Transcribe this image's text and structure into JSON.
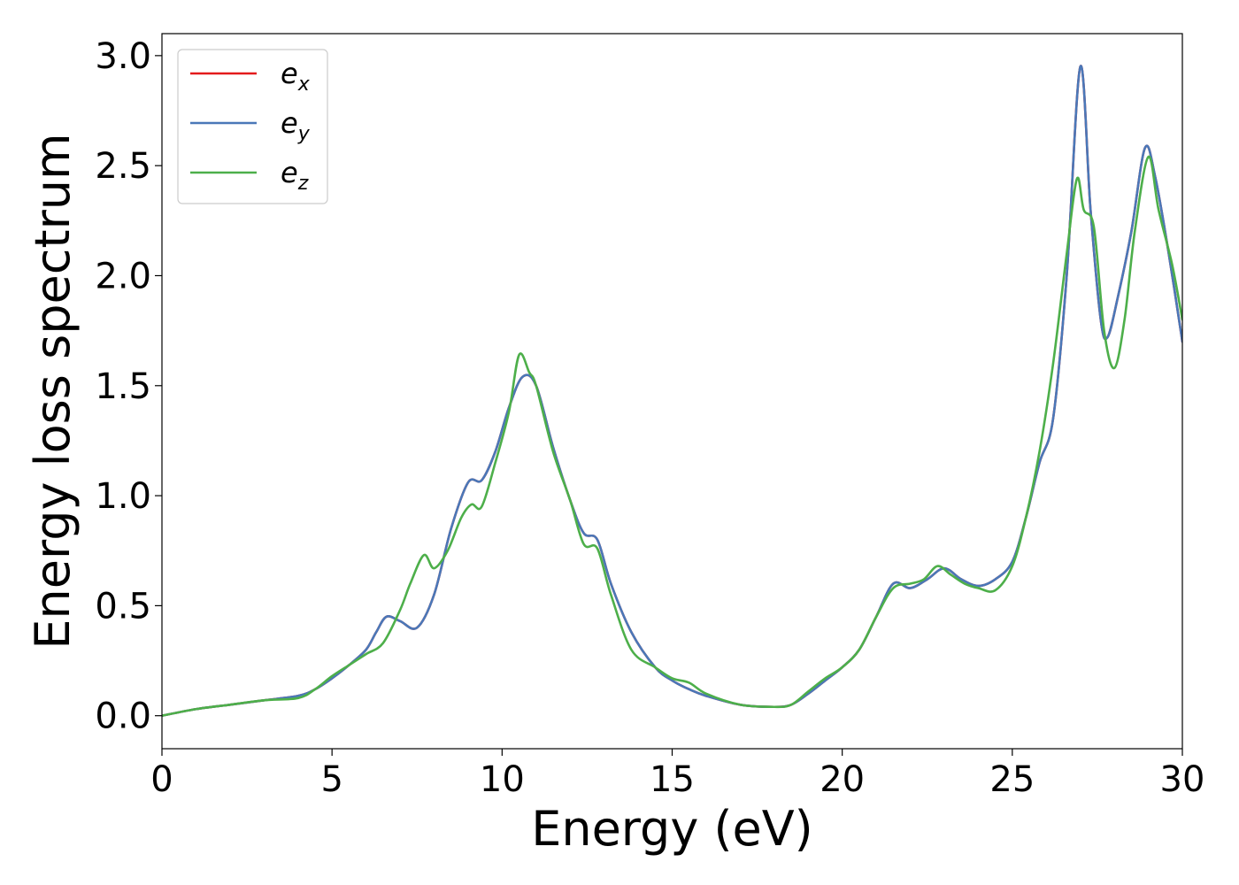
{
  "chart_data": {
    "type": "line",
    "title": "",
    "xlabel": "Energy (eV)",
    "ylabel": "Energy loss spectrum",
    "xlim": [
      0,
      30
    ],
    "ylim": [
      -0.15,
      3.1
    ],
    "xticks": [
      0,
      5,
      10,
      15,
      20,
      25,
      30
    ],
    "xtick_labels": [
      "0",
      "5",
      "10",
      "15",
      "20",
      "25",
      "30"
    ],
    "yticks": [
      0.0,
      0.5,
      1.0,
      1.5,
      2.0,
      2.5,
      3.0
    ],
    "ytick_labels": [
      "0.0",
      "0.5",
      "1.0",
      "1.5",
      "2.0",
      "2.5",
      "3.0"
    ],
    "grid": false,
    "legend_position": "top-left",
    "series": [
      {
        "name": "e_x",
        "base": "e",
        "sub": "x",
        "color": "#e41a1c",
        "x": [
          0,
          1,
          2,
          3,
          4,
          4.5,
          5,
          5.5,
          6,
          6.3,
          6.6,
          7,
          7.5,
          8,
          8.5,
          9,
          9.4,
          9.8,
          10.2,
          10.6,
          11,
          11.5,
          12,
          12.4,
          12.8,
          13.2,
          13.8,
          14.5,
          15,
          15.5,
          16,
          17,
          18,
          18.5,
          19,
          19.5,
          20,
          20.5,
          21,
          21.5,
          22,
          22.5,
          23,
          23.5,
          24,
          24.5,
          25,
          25.4,
          25.8,
          26.2,
          26.6,
          27,
          27.3,
          27.6,
          27.8,
          28.1,
          28.5,
          28.9,
          29.2,
          29.6,
          30
        ],
        "y": [
          0.0,
          0.03,
          0.05,
          0.07,
          0.09,
          0.12,
          0.17,
          0.23,
          0.3,
          0.38,
          0.45,
          0.43,
          0.4,
          0.55,
          0.85,
          1.06,
          1.07,
          1.2,
          1.4,
          1.54,
          1.5,
          1.22,
          0.98,
          0.83,
          0.8,
          0.6,
          0.38,
          0.22,
          0.16,
          0.12,
          0.09,
          0.05,
          0.04,
          0.05,
          0.1,
          0.16,
          0.22,
          0.3,
          0.45,
          0.6,
          0.58,
          0.62,
          0.67,
          0.62,
          0.59,
          0.62,
          0.7,
          0.9,
          1.15,
          1.35,
          2.0,
          2.95,
          2.3,
          1.8,
          1.72,
          1.9,
          2.2,
          2.58,
          2.45,
          2.1,
          1.7
        ]
      },
      {
        "name": "e_y",
        "base": "e",
        "sub": "y",
        "color": "#4a78b8",
        "x": [
          0,
          1,
          2,
          3,
          4,
          4.5,
          5,
          5.5,
          6,
          6.3,
          6.6,
          7,
          7.5,
          8,
          8.5,
          9,
          9.4,
          9.8,
          10.2,
          10.6,
          11,
          11.5,
          12,
          12.4,
          12.8,
          13.2,
          13.8,
          14.5,
          15,
          15.5,
          16,
          17,
          18,
          18.5,
          19,
          19.5,
          20,
          20.5,
          21,
          21.5,
          22,
          22.5,
          23,
          23.5,
          24,
          24.5,
          25,
          25.4,
          25.8,
          26.2,
          26.6,
          27,
          27.3,
          27.6,
          27.8,
          28.1,
          28.5,
          28.9,
          29.2,
          29.6,
          30
        ],
        "y": [
          0.0,
          0.03,
          0.05,
          0.07,
          0.09,
          0.12,
          0.17,
          0.23,
          0.3,
          0.38,
          0.45,
          0.43,
          0.4,
          0.55,
          0.85,
          1.06,
          1.07,
          1.2,
          1.4,
          1.54,
          1.5,
          1.22,
          0.98,
          0.83,
          0.8,
          0.6,
          0.38,
          0.22,
          0.16,
          0.12,
          0.09,
          0.05,
          0.04,
          0.05,
          0.1,
          0.16,
          0.22,
          0.3,
          0.45,
          0.6,
          0.58,
          0.62,
          0.67,
          0.62,
          0.59,
          0.62,
          0.7,
          0.9,
          1.15,
          1.35,
          2.0,
          2.95,
          2.3,
          1.8,
          1.72,
          1.9,
          2.2,
          2.58,
          2.45,
          2.1,
          1.7
        ]
      },
      {
        "name": "e_z",
        "base": "e",
        "sub": "z",
        "color": "#4daf4a",
        "x": [
          0,
          1,
          2,
          3,
          4,
          4.5,
          5,
          5.5,
          6,
          6.5,
          7,
          7.3,
          7.7,
          8,
          8.4,
          8.8,
          9.1,
          9.4,
          9.8,
          10.2,
          10.5,
          10.8,
          11,
          11.5,
          12,
          12.4,
          12.8,
          13.2,
          13.8,
          14.5,
          15,
          15.5,
          16,
          17,
          18,
          18.5,
          19,
          19.5,
          20,
          20.5,
          21,
          21.5,
          22,
          22.4,
          22.8,
          23.2,
          23.6,
          24,
          24.5,
          25,
          25.4,
          25.8,
          26.2,
          26.6,
          26.9,
          27.1,
          27.4,
          27.7,
          28.0,
          28.3,
          28.6,
          29.0,
          29.3,
          29.7,
          30
        ],
        "y": [
          0.0,
          0.03,
          0.05,
          0.07,
          0.08,
          0.12,
          0.18,
          0.23,
          0.28,
          0.33,
          0.48,
          0.6,
          0.73,
          0.67,
          0.75,
          0.9,
          0.96,
          0.95,
          1.15,
          1.38,
          1.64,
          1.56,
          1.5,
          1.2,
          0.98,
          0.78,
          0.76,
          0.55,
          0.3,
          0.22,
          0.17,
          0.15,
          0.1,
          0.05,
          0.04,
          0.05,
          0.11,
          0.17,
          0.22,
          0.3,
          0.45,
          0.58,
          0.6,
          0.62,
          0.68,
          0.64,
          0.6,
          0.58,
          0.57,
          0.68,
          0.9,
          1.2,
          1.6,
          2.1,
          2.44,
          2.3,
          2.22,
          1.75,
          1.58,
          1.8,
          2.2,
          2.54,
          2.3,
          2.05,
          1.8
        ]
      }
    ]
  }
}
